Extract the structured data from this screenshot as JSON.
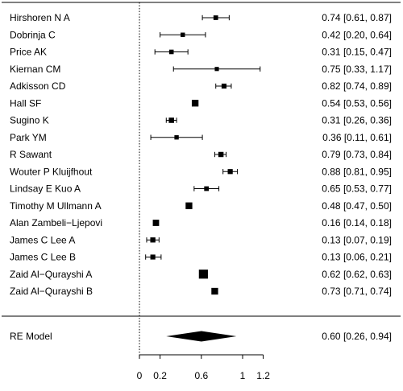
{
  "chart_data": {
    "type": "forest",
    "studies": [
      {
        "label": "Hirshoren N A",
        "est": 0.74,
        "lo": 0.61,
        "hi": 0.87,
        "text": "0.74 [0.61, 0.87]"
      },
      {
        "label": "Dobrinja C",
        "est": 0.42,
        "lo": 0.2,
        "hi": 0.64,
        "text": "0.42 [0.20, 0.64]"
      },
      {
        "label": "Price AK",
        "est": 0.31,
        "lo": 0.15,
        "hi": 0.47,
        "text": "0.31 [0.15, 0.47]"
      },
      {
        "label": "Kiernan CM",
        "est": 0.75,
        "lo": 0.33,
        "hi": 1.17,
        "text": "0.75 [0.33, 1.17]"
      },
      {
        "label": "Adkisson CD",
        "est": 0.82,
        "lo": 0.74,
        "hi": 0.89,
        "text": "0.82 [0.74, 0.89]"
      },
      {
        "label": "Hall SF",
        "est": 0.54,
        "lo": 0.53,
        "hi": 0.56,
        "text": "0.54 [0.53, 0.56]"
      },
      {
        "label": "Sugino K",
        "est": 0.31,
        "lo": 0.26,
        "hi": 0.36,
        "text": "0.31 [0.26, 0.36]"
      },
      {
        "label": "Park YM",
        "est": 0.36,
        "lo": 0.11,
        "hi": 0.61,
        "text": "0.36 [0.11, 0.61]"
      },
      {
        "label": "R Sawant",
        "est": 0.79,
        "lo": 0.73,
        "hi": 0.84,
        "text": "0.79 [0.73, 0.84]"
      },
      {
        "label": "Wouter P Kluijfhout",
        "est": 0.88,
        "lo": 0.81,
        "hi": 0.95,
        "text": "0.88 [0.81, 0.95]"
      },
      {
        "label": "Lindsay E Kuo A",
        "est": 0.65,
        "lo": 0.53,
        "hi": 0.77,
        "text": "0.65 [0.53, 0.77]"
      },
      {
        "label": "Timothy M Ullmann A",
        "est": 0.48,
        "lo": 0.47,
        "hi": 0.5,
        "text": "0.48 [0.47, 0.50]"
      },
      {
        "label": "Alan Zambeli−Ljepovi",
        "est": 0.16,
        "lo": 0.14,
        "hi": 0.18,
        "text": "0.16 [0.14, 0.18]"
      },
      {
        "label": "James C Lee A",
        "est": 0.13,
        "lo": 0.07,
        "hi": 0.19,
        "text": "0.13 [0.07, 0.19]"
      },
      {
        "label": "James C Lee B",
        "est": 0.13,
        "lo": 0.06,
        "hi": 0.21,
        "text": "0.13 [0.06, 0.21]"
      },
      {
        "label": "Zaid Al−Qurayshi A",
        "est": 0.62,
        "lo": 0.62,
        "hi": 0.63,
        "text": "0.62 [0.62, 0.63]"
      },
      {
        "label": "Zaid Al−Qurayshi B",
        "est": 0.73,
        "lo": 0.71,
        "hi": 0.74,
        "text": "0.73 [0.71, 0.74]"
      }
    ],
    "summary": {
      "label": "RE Model",
      "est": 0.6,
      "lo": 0.26,
      "hi": 0.94,
      "text": "0.60 [0.26, 0.94]"
    },
    "reference_line": 0,
    "xlim": [
      0,
      1.2
    ],
    "x_ticks": [
      0,
      0.2,
      0.6,
      1,
      1.2
    ],
    "x_tick_labels": [
      "0",
      "0.2",
      "0.6",
      "1",
      "1.2"
    ],
    "title": "",
    "xlabel": "",
    "ylabel": ""
  }
}
